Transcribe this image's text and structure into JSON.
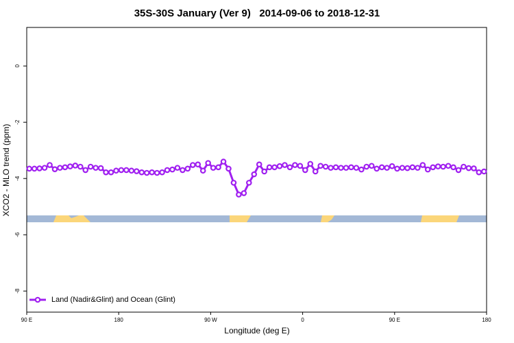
{
  "chart_data": {
    "type": "line",
    "title": "35S-30S January (Ver 9)   2014-09-06 to 2018-12-31",
    "x_label": "Longitude (deg E)",
    "y_label": "XCO2 - MLO trend (ppm)",
    "x": [
      92.5,
      97.5,
      102.5,
      107.5,
      112.5,
      117.5,
      122.5,
      127.5,
      132.5,
      137.5,
      142.5,
      147.5,
      152.5,
      157.5,
      162.5,
      167.5,
      172.5,
      177.5,
      182.5,
      187.5,
      192.5,
      197.5,
      202.5,
      207.5,
      212.5,
      217.5,
      222.5,
      227.5,
      232.5,
      237.5,
      242.5,
      247.5,
      252.5,
      257.5,
      262.5,
      267.5,
      272.5,
      277.5,
      282.5,
      287.5,
      292.5,
      297.5,
      302.5,
      307.5,
      312.5,
      317.5,
      322.5,
      327.5,
      332.5,
      337.5,
      342.5,
      347.5,
      352.5,
      357.5,
      362.5,
      367.5,
      372.5,
      377.5,
      382.5,
      387.5,
      392.5,
      397.5,
      402.5,
      407.5,
      412.5,
      417.5,
      422.5,
      427.5,
      432.5,
      437.5,
      442.5,
      447.5,
      452.5,
      457.5,
      462.5,
      467.5,
      472.5,
      477.5,
      482.5,
      487.5,
      492.5,
      497.5,
      502.5,
      507.5,
      512.5,
      517.5,
      522.5,
      527.5,
      532.5,
      537.5
    ],
    "series": [
      {
        "name": "Land (Nadir&Glint) and Ocean (Glint)",
        "color": "#a020f0",
        "values": [
          -3.65,
          -3.65,
          -3.64,
          -3.62,
          -3.52,
          -3.67,
          -3.62,
          -3.6,
          -3.57,
          -3.54,
          -3.58,
          -3.7,
          -3.58,
          -3.62,
          -3.63,
          -3.78,
          -3.78,
          -3.72,
          -3.7,
          -3.7,
          -3.72,
          -3.74,
          -3.78,
          -3.8,
          -3.78,
          -3.8,
          -3.78,
          -3.7,
          -3.68,
          -3.62,
          -3.7,
          -3.65,
          -3.52,
          -3.5,
          -3.72,
          -3.45,
          -3.62,
          -3.6,
          -3.4,
          -3.65,
          -4.15,
          -4.57,
          -4.52,
          -4.15,
          -3.85,
          -3.5,
          -3.75,
          -3.6,
          -3.6,
          -3.56,
          -3.52,
          -3.6,
          -3.52,
          -3.55,
          -3.7,
          -3.48,
          -3.75,
          -3.55,
          -3.58,
          -3.62,
          -3.6,
          -3.62,
          -3.62,
          -3.6,
          -3.62,
          -3.68,
          -3.58,
          -3.55,
          -3.65,
          -3.6,
          -3.62,
          -3.56,
          -3.65,
          -3.62,
          -3.63,
          -3.6,
          -3.62,
          -3.52,
          -3.68,
          -3.6,
          -3.57,
          -3.58,
          -3.55,
          -3.6,
          -3.7,
          -3.58,
          -3.63,
          -3.64,
          -3.78,
          -3.75
        ]
      }
    ],
    "xlim": [
      90,
      540
    ],
    "xticks": [
      {
        "value": 90,
        "label": "90 E"
      },
      180,
      {
        "value": 270,
        "label": "90 W"
      },
      {
        "value": 360,
        "label": "0"
      },
      {
        "value": 450,
        "label": "90 E"
      },
      {
        "value": 540,
        "label": "180"
      }
    ],
    "ylim": [
      -8.75,
      1.37
    ],
    "yticks": [
      0,
      -2,
      -4,
      -6,
      -8
    ],
    "legend": "bottom-left",
    "markers": true
  }
}
